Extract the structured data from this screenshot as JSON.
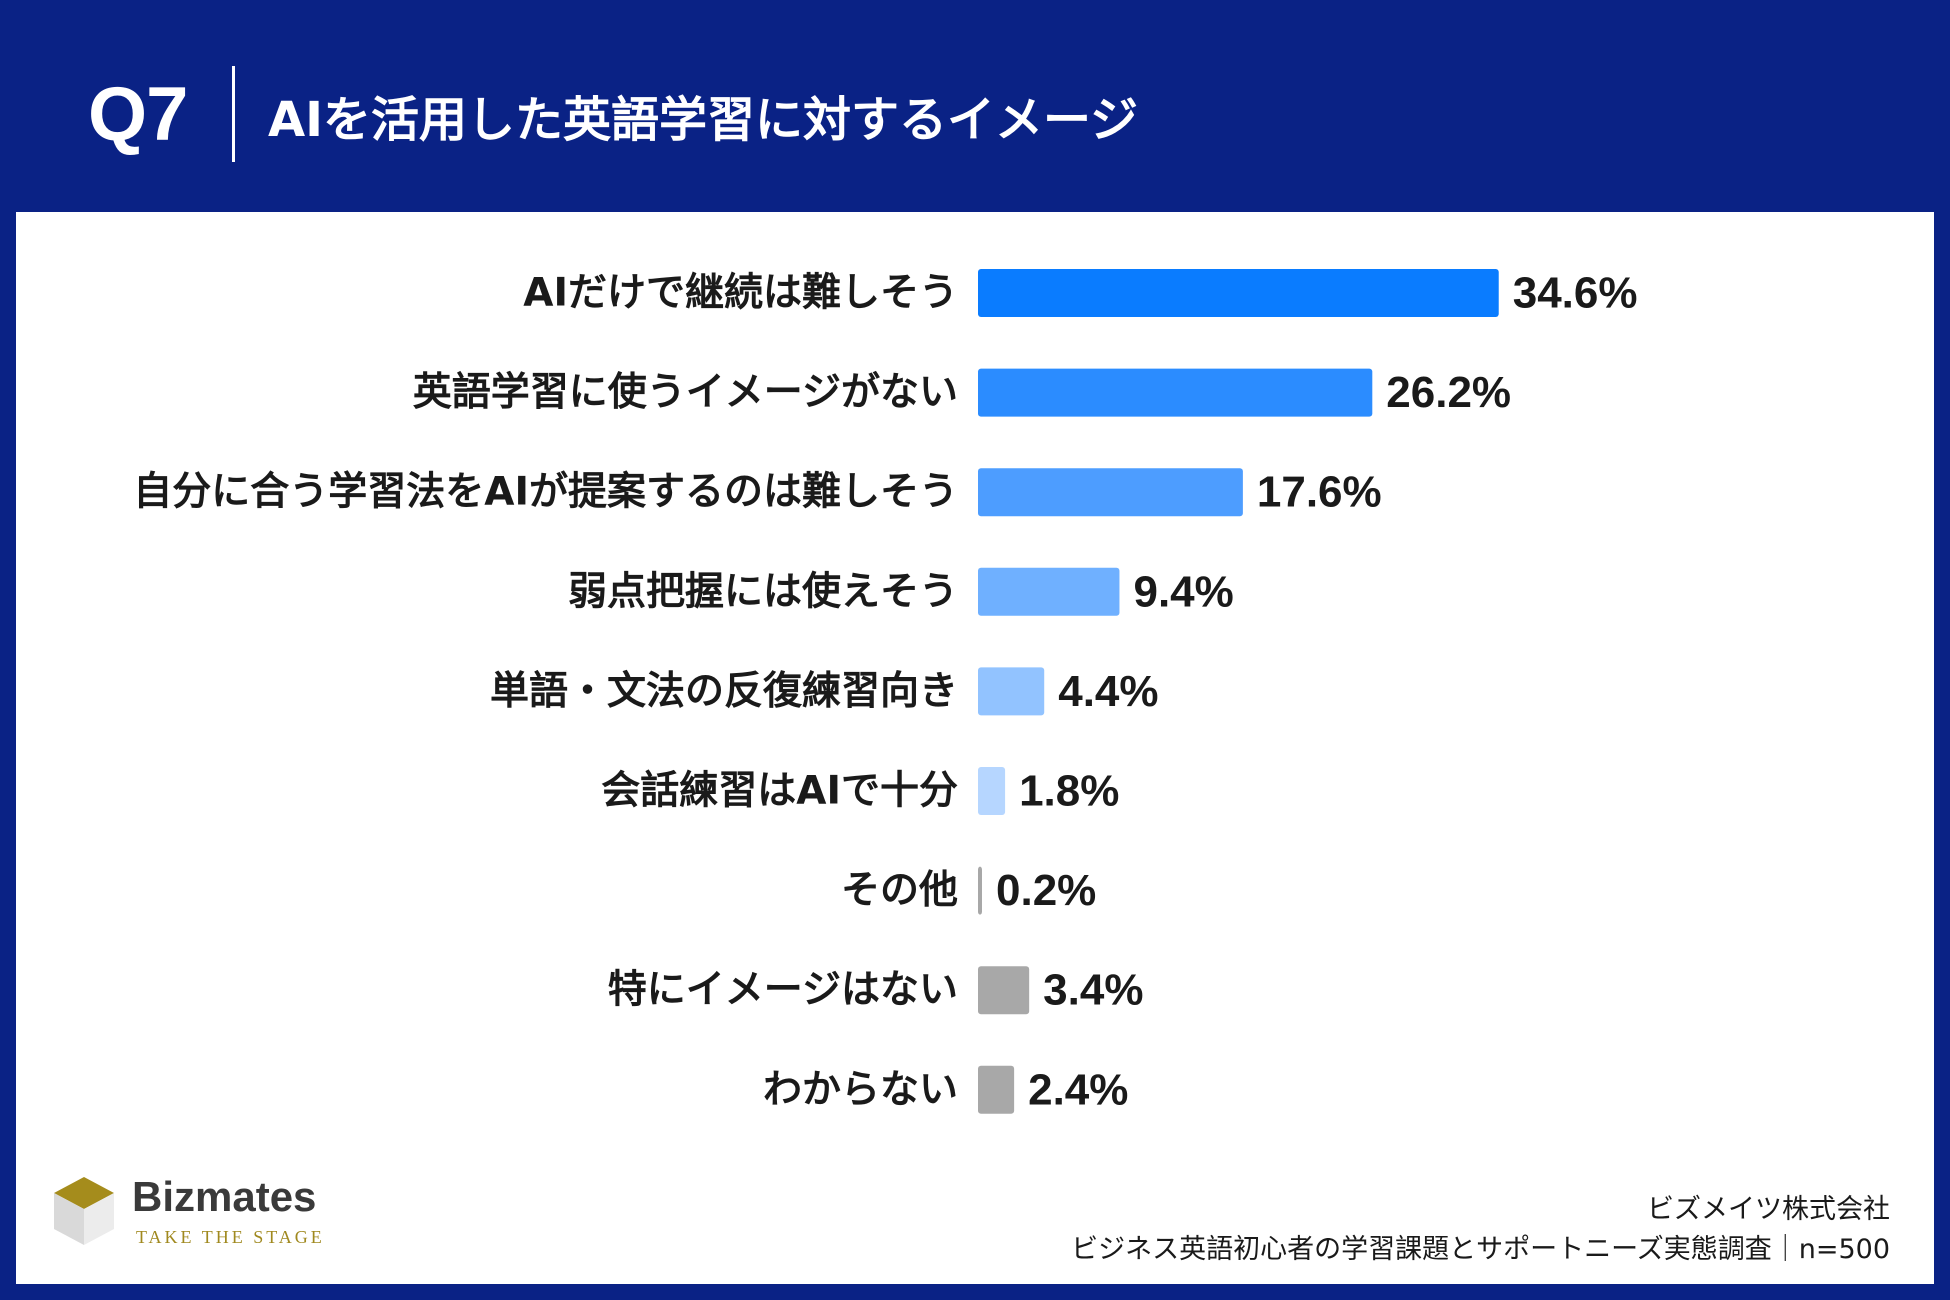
{
  "header": {
    "question": "Q7",
    "title": "AIを活用した英語学習に対するイメージ"
  },
  "chart_data": {
    "type": "bar",
    "orientation": "horizontal",
    "title": "AIを活用した英語学習に対するイメージ",
    "unit": "%",
    "categories": [
      "AIだけで継続は難しそう",
      "英語学習に使うイメージがない",
      "自分に合う学習法をAIが提案するのは難しそう",
      "弱点把握には使えそう",
      "単語・文法の反復練習向き",
      "会話練習はAIで十分",
      "その他",
      "特にイメージはない",
      "わからない"
    ],
    "values": [
      34.6,
      26.2,
      17.6,
      9.4,
      4.4,
      1.8,
      0.2,
      3.4,
      2.4
    ],
    "value_labels": [
      "34.6%",
      "26.2%",
      "17.6%",
      "9.4%",
      "4.4%",
      "1.8%",
      "0.2%",
      "3.4%",
      "2.4%"
    ],
    "colors": [
      "#0a7cff",
      "#2b8cff",
      "#4d9dff",
      "#6fb0ff",
      "#92c3ff",
      "#b6d6ff",
      "#a8a8a8",
      "#a8a8a8",
      "#a8a8a8"
    ],
    "xlim": [
      0,
      35
    ],
    "grid": false,
    "legend": "none"
  },
  "logo": {
    "name": "Bizmates",
    "tagline": "TAKE THE STAGE"
  },
  "footer": {
    "company": "ビズメイツ株式会社",
    "survey": "ビジネス英語初心者の学習課題とサポートニーズ実態調査｜n=500"
  }
}
